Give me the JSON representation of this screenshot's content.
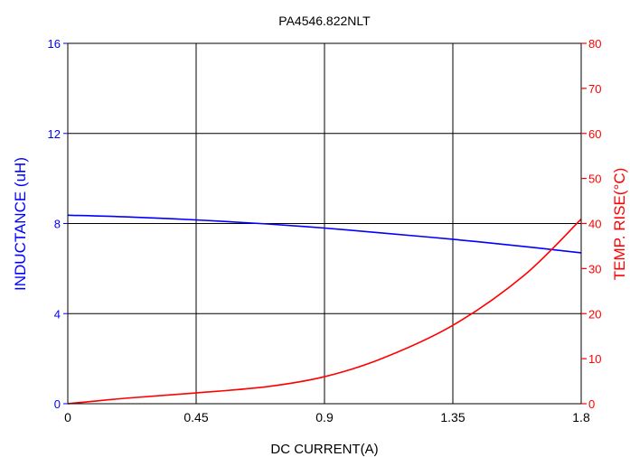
{
  "chart_data": {
    "type": "line",
    "title": "PA4546.822NLT",
    "xlabel": "DC CURRENT(A)",
    "ylabel_left": "INDUCTANCE (uH)",
    "ylabel_right": "TEMP. RISE(°C)",
    "xlim": [
      0,
      1.8
    ],
    "ylim_left": [
      0,
      16
    ],
    "ylim_right": [
      0,
      80
    ],
    "x_ticks": [
      "0",
      "0.45",
      "0.9",
      "1.35",
      "1.8"
    ],
    "y_left_ticks": [
      "0",
      "4",
      "8",
      "12",
      "16"
    ],
    "y_right_ticks": [
      "0",
      "10",
      "20",
      "30",
      "40",
      "50",
      "60",
      "70",
      "80"
    ],
    "grid": true,
    "colors": {
      "inductance": "#0000ff",
      "temp_rise": "#ff0000",
      "grid": "#000000"
    },
    "series": [
      {
        "axis": "left",
        "color": "#0000ff",
        "x": [
          0,
          0.2,
          0.45,
          0.7,
          0.9,
          1.1,
          1.35,
          1.6,
          1.8
        ],
        "values": [
          8.37,
          8.3,
          8.16,
          7.98,
          7.8,
          7.58,
          7.3,
          6.98,
          6.7
        ]
      },
      {
        "axis": "right",
        "color": "#ff0000",
        "x": [
          0,
          0.2,
          0.45,
          0.7,
          0.9,
          1.1,
          1.35,
          1.6,
          1.8
        ],
        "values": [
          0,
          1.2,
          2.4,
          3.8,
          6.0,
          10.0,
          17.4,
          28.5,
          41.0
        ]
      }
    ]
  }
}
